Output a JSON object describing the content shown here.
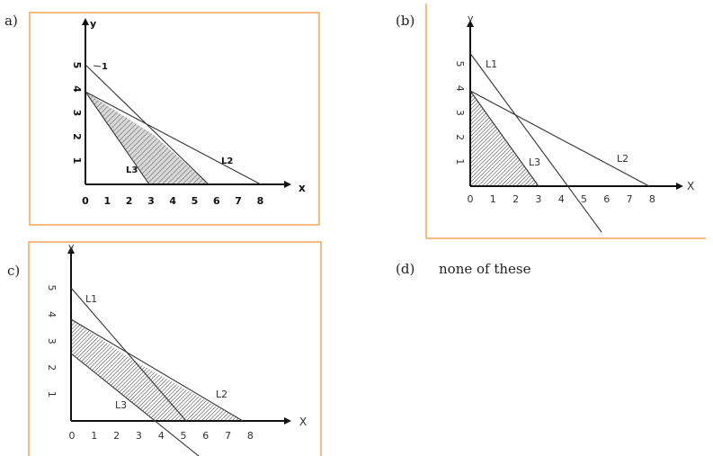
{
  "options": {
    "a": {
      "label": "a)"
    },
    "b": {
      "label": "(b)"
    },
    "c": {
      "label": "c)"
    },
    "d": {
      "label": "(d)",
      "text": "none of these"
    }
  },
  "colors": {
    "frame": "#f5a45a",
    "axis": "#111111",
    "hatch": "#555555"
  },
  "axis_names": {
    "x": "X",
    "y": "y"
  },
  "panel_a": {
    "x_ticks": [
      "0",
      "1",
      "2",
      "3",
      "4",
      "5",
      "6",
      "7",
      "8"
    ],
    "y_ticks": [
      "1",
      "2",
      "3",
      "4",
      "5"
    ],
    "x_axis": "x",
    "line_labels": {
      "l1": "1",
      "l2": "L2",
      "l3": "L3"
    }
  },
  "panel_b": {
    "x_ticks": [
      "0",
      "1",
      "2",
      "3",
      "4",
      "5",
      "6",
      "7",
      "8"
    ],
    "y_ticks": [
      "1",
      "2",
      "3",
      "4",
      "5"
    ],
    "x_axis": "X",
    "line_labels": {
      "l1": "L1",
      "l2": "L2",
      "l3": "L3"
    }
  },
  "panel_c": {
    "x_ticks": [
      "0",
      "1",
      "2",
      "3",
      "4",
      "5",
      "6",
      "7",
      "8"
    ],
    "y_ticks": [
      "1",
      "2",
      "3",
      "4",
      "5"
    ],
    "x_axis": "X",
    "line_labels": {
      "l1": "L1",
      "l2": "L2",
      "l3": "L3"
    }
  }
}
